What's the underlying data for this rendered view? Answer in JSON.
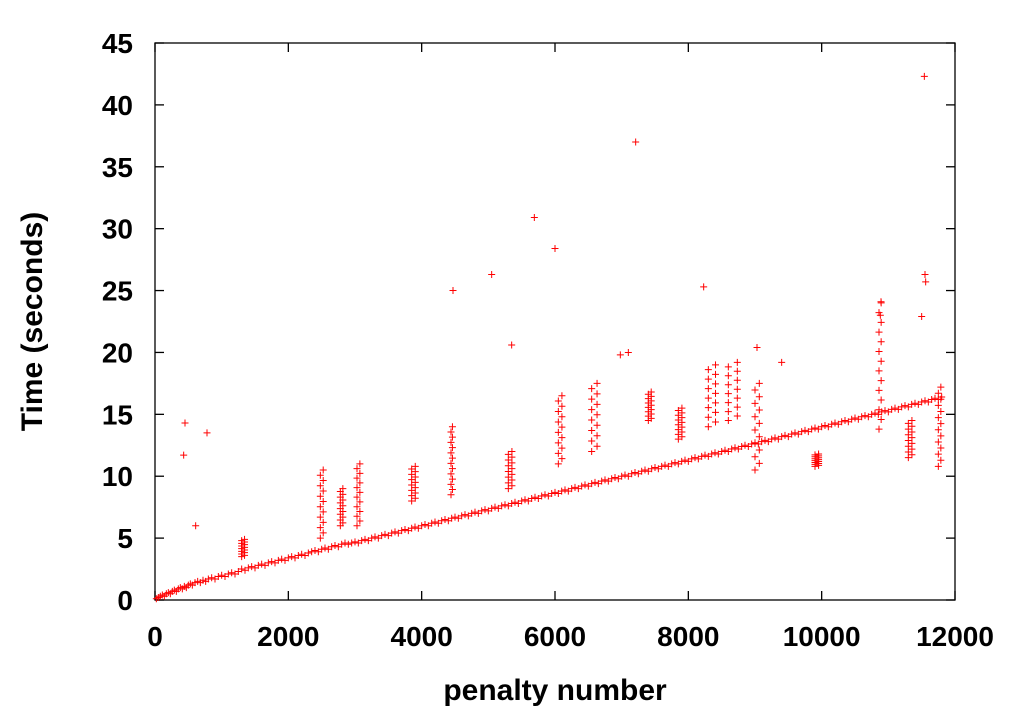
{
  "chart_data": {
    "type": "scatter",
    "xlabel": "penalty number",
    "ylabel": "Time (seconds)",
    "xlim": [
      0,
      12000
    ],
    "ylim": [
      0,
      45
    ],
    "xticks": [
      "0",
      "2000",
      "4000",
      "6000",
      "8000",
      "10000",
      "12000"
    ],
    "yticks": [
      "0",
      "5",
      "10",
      "15",
      "20",
      "25",
      "30",
      "35",
      "40",
      "45"
    ],
    "grid": false,
    "legend": "none",
    "marker": "+",
    "color": "#ff0000",
    "series": [
      {
        "points": [
          [
            20,
            0.1
          ],
          [
            50,
            0.2
          ],
          [
            80,
            0.3
          ],
          [
            110,
            0.4
          ],
          [
            140,
            0.3
          ],
          [
            170,
            0.5
          ],
          [
            200,
            0.6
          ],
          [
            230,
            0.5
          ],
          [
            260,
            0.7
          ],
          [
            290,
            0.8
          ],
          [
            320,
            0.7
          ],
          [
            350,
            0.9
          ],
          [
            380,
            1.0
          ],
          [
            410,
            0.9
          ],
          [
            440,
            1.1
          ],
          [
            470,
            1.0
          ],
          [
            500,
            1.2
          ],
          [
            530,
            1.3
          ],
          [
            560,
            1.2
          ],
          [
            600,
            1.4
          ],
          [
            640,
            1.5
          ],
          [
            680,
            1.4
          ],
          [
            720,
            1.6
          ],
          [
            760,
            1.5
          ],
          [
            800,
            1.7
          ],
          [
            850,
            1.8
          ],
          [
            900,
            1.7
          ],
          [
            950,
            1.9
          ],
          [
            1000,
            2.0
          ],
          [
            1050,
            1.9
          ],
          [
            1100,
            2.1
          ],
          [
            1150,
            2.2
          ],
          [
            1200,
            2.1
          ],
          [
            1250,
            2.3
          ],
          [
            1300,
            2.5
          ],
          [
            1350,
            2.4
          ],
          [
            1400,
            2.6
          ],
          [
            1450,
            2.7
          ],
          [
            1500,
            2.6
          ],
          [
            1550,
            2.8
          ],
          [
            1600,
            2.9
          ],
          [
            1650,
            2.8
          ],
          [
            1700,
            3.0
          ],
          [
            1750,
            3.1
          ],
          [
            1800,
            3.0
          ],
          [
            1850,
            3.2
          ],
          [
            1900,
            3.3
          ],
          [
            1950,
            3.2
          ],
          [
            2000,
            3.4
          ],
          [
            2050,
            3.5
          ],
          [
            2100,
            3.4
          ],
          [
            2150,
            3.6
          ],
          [
            2200,
            3.7
          ],
          [
            2250,
            3.6
          ],
          [
            2300,
            3.8
          ],
          [
            2350,
            3.9
          ],
          [
            2400,
            4.0
          ],
          [
            2450,
            3.9
          ],
          [
            2500,
            4.1
          ],
          [
            2550,
            4.2
          ],
          [
            2600,
            4.1
          ],
          [
            2650,
            4.3
          ],
          [
            2700,
            4.4
          ],
          [
            2750,
            4.3
          ],
          [
            2800,
            4.5
          ],
          [
            2850,
            4.6
          ],
          [
            2900,
            4.5
          ],
          [
            2950,
            4.6
          ],
          [
            3000,
            4.7
          ],
          [
            3050,
            4.6
          ],
          [
            3100,
            4.8
          ],
          [
            3150,
            4.9
          ],
          [
            3200,
            4.8
          ],
          [
            3250,
            5.0
          ],
          [
            3300,
            5.1
          ],
          [
            3350,
            5.0
          ],
          [
            3400,
            5.2
          ],
          [
            3450,
            5.3
          ],
          [
            3500,
            5.2
          ],
          [
            3550,
            5.4
          ],
          [
            3600,
            5.5
          ],
          [
            3650,
            5.4
          ],
          [
            3700,
            5.6
          ],
          [
            3750,
            5.7
          ],
          [
            3800,
            5.6
          ],
          [
            3850,
            5.8
          ],
          [
            3900,
            5.9
          ],
          [
            3950,
            5.8
          ],
          [
            4000,
            6.0
          ],
          [
            4050,
            6.1
          ],
          [
            4100,
            6.0
          ],
          [
            4150,
            6.2
          ],
          [
            4200,
            6.3
          ],
          [
            4250,
            6.2
          ],
          [
            4300,
            6.4
          ],
          [
            4350,
            6.5
          ],
          [
            4400,
            6.4
          ],
          [
            4450,
            6.6
          ],
          [
            4500,
            6.7
          ],
          [
            4550,
            6.6
          ],
          [
            4600,
            6.8
          ],
          [
            4650,
            6.9
          ],
          [
            4700,
            6.8
          ],
          [
            4750,
            7.0
          ],
          [
            4800,
            7.1
          ],
          [
            4850,
            7.0
          ],
          [
            4900,
            7.2
          ],
          [
            4950,
            7.3
          ],
          [
            5000,
            7.2
          ],
          [
            5050,
            7.4
          ],
          [
            5100,
            7.5
          ],
          [
            5150,
            7.4
          ],
          [
            5200,
            7.6
          ],
          [
            5250,
            7.7
          ],
          [
            5300,
            7.6
          ],
          [
            5350,
            7.8
          ],
          [
            5400,
            7.9
          ],
          [
            5450,
            7.8
          ],
          [
            5500,
            8.0
          ],
          [
            5550,
            8.1
          ],
          [
            5600,
            8.0
          ],
          [
            5650,
            8.2
          ],
          [
            5700,
            8.3
          ],
          [
            5750,
            8.2
          ],
          [
            5800,
            8.4
          ],
          [
            5850,
            8.5
          ],
          [
            5900,
            8.4
          ],
          [
            5950,
            8.6
          ],
          [
            6000,
            8.7
          ],
          [
            6050,
            8.6
          ],
          [
            6100,
            8.8
          ],
          [
            6150,
            8.9
          ],
          [
            6200,
            8.8
          ],
          [
            6250,
            9.0
          ],
          [
            6300,
            9.1
          ],
          [
            6350,
            9.0
          ],
          [
            6400,
            9.2
          ],
          [
            6450,
            9.3
          ],
          [
            6500,
            9.2
          ],
          [
            6550,
            9.4
          ],
          [
            6600,
            9.5
          ],
          [
            6650,
            9.4
          ],
          [
            6700,
            9.6
          ],
          [
            6750,
            9.7
          ],
          [
            6800,
            9.6
          ],
          [
            6850,
            9.8
          ],
          [
            6900,
            9.9
          ],
          [
            6950,
            9.8
          ],
          [
            7000,
            10.0
          ],
          [
            7050,
            10.1
          ],
          [
            7100,
            10.0
          ],
          [
            7150,
            10.2
          ],
          [
            7200,
            10.3
          ],
          [
            7250,
            10.2
          ],
          [
            7300,
            10.4
          ],
          [
            7350,
            10.5
          ],
          [
            7400,
            10.4
          ],
          [
            7450,
            10.6
          ],
          [
            7500,
            10.7
          ],
          [
            7550,
            10.6
          ],
          [
            7600,
            10.8
          ],
          [
            7650,
            10.9
          ],
          [
            7700,
            10.8
          ],
          [
            7750,
            11.0
          ],
          [
            7800,
            11.1
          ],
          [
            7850,
            11.0
          ],
          [
            7900,
            11.2
          ],
          [
            7950,
            11.3
          ],
          [
            8000,
            11.2
          ],
          [
            8050,
            11.4
          ],
          [
            8100,
            11.5
          ],
          [
            8150,
            11.4
          ],
          [
            8200,
            11.6
          ],
          [
            8250,
            11.7
          ],
          [
            8300,
            11.6
          ],
          [
            8350,
            11.8
          ],
          [
            8400,
            11.9
          ],
          [
            8450,
            11.8
          ],
          [
            8500,
            12.0
          ],
          [
            8550,
            12.1
          ],
          [
            8600,
            12.0
          ],
          [
            8650,
            12.2
          ],
          [
            8700,
            12.3
          ],
          [
            8750,
            12.2
          ],
          [
            8800,
            12.4
          ],
          [
            8850,
            12.5
          ],
          [
            8900,
            12.4
          ],
          [
            8950,
            12.6
          ],
          [
            9000,
            12.7
          ],
          [
            9050,
            12.6
          ],
          [
            9100,
            12.8
          ],
          [
            9150,
            12.9
          ],
          [
            9200,
            12.8
          ],
          [
            9250,
            13.0
          ],
          [
            9300,
            13.1
          ],
          [
            9350,
            13.0
          ],
          [
            9400,
            13.2
          ],
          [
            9450,
            13.3
          ],
          [
            9500,
            13.2
          ],
          [
            9550,
            13.4
          ],
          [
            9600,
            13.5
          ],
          [
            9650,
            13.4
          ],
          [
            9700,
            13.6
          ],
          [
            9750,
            13.7
          ],
          [
            9800,
            13.6
          ],
          [
            9850,
            13.8
          ],
          [
            9900,
            13.9
          ],
          [
            9950,
            13.8
          ],
          [
            10000,
            14.0
          ],
          [
            10050,
            14.1
          ],
          [
            10100,
            14.0
          ],
          [
            10150,
            14.2
          ],
          [
            10200,
            14.3
          ],
          [
            10250,
            14.2
          ],
          [
            10300,
            14.4
          ],
          [
            10350,
            14.5
          ],
          [
            10400,
            14.4
          ],
          [
            10450,
            14.6
          ],
          [
            10500,
            14.7
          ],
          [
            10550,
            14.6
          ],
          [
            10600,
            14.8
          ],
          [
            10650,
            14.9
          ],
          [
            10700,
            14.8
          ],
          [
            10750,
            15.0
          ],
          [
            10800,
            15.1
          ],
          [
            10850,
            15.0
          ],
          [
            10900,
            15.2
          ],
          [
            10950,
            15.3
          ],
          [
            11000,
            15.2
          ],
          [
            11050,
            15.4
          ],
          [
            11100,
            15.5
          ],
          [
            11150,
            15.4
          ],
          [
            11200,
            15.6
          ],
          [
            11250,
            15.7
          ],
          [
            11300,
            15.6
          ],
          [
            11350,
            15.8
          ],
          [
            11400,
            15.9
          ],
          [
            11450,
            15.8
          ],
          [
            11500,
            16.0
          ],
          [
            11550,
            16.1
          ],
          [
            11600,
            16.0
          ],
          [
            11650,
            16.2
          ],
          [
            11700,
            16.3
          ],
          [
            11750,
            16.2
          ],
          [
            11800,
            16.4
          ]
        ]
      }
    ],
    "notable_points": [
      [
        450,
        14.3
      ],
      [
        430,
        11.7
      ],
      [
        780,
        13.5
      ],
      [
        610,
        6.0
      ],
      [
        4470,
        25.0
      ],
      [
        5050,
        26.3
      ],
      [
        5350,
        20.6
      ],
      [
        5690,
        30.9
      ],
      [
        6000,
        28.4
      ],
      [
        7210,
        37.0
      ],
      [
        8230,
        25.3
      ],
      [
        6980,
        19.8
      ],
      [
        7100,
        20.0
      ],
      [
        9030,
        20.4
      ],
      [
        9400,
        19.2
      ],
      [
        11540,
        42.3
      ],
      [
        11550,
        26.3
      ],
      [
        11560,
        25.7
      ],
      [
        11500,
        22.9
      ],
      [
        10890,
        24.1
      ],
      [
        10880,
        23.0
      ]
    ],
    "clusters": [
      {
        "x_range": [
          1300,
          1380
        ],
        "y_range": [
          3.5,
          4.9
        ]
      },
      {
        "x_range": [
          2480,
          2560
        ],
        "y_range": [
          5.0,
          10.5
        ]
      },
      {
        "x_range": [
          2780,
          2850
        ],
        "y_range": [
          6.0,
          9.0
        ]
      },
      {
        "x_range": [
          3030,
          3110
        ],
        "y_range": [
          6.0,
          11.0
        ]
      },
      {
        "x_range": [
          3850,
          3950
        ],
        "y_range": [
          8.0,
          10.8
        ]
      },
      {
        "x_range": [
          4440,
          4480
        ],
        "y_range": [
          8.5,
          14.0
        ]
      },
      {
        "x_range": [
          5300,
          5400
        ],
        "y_range": [
          9.0,
          12.0
        ]
      },
      {
        "x_range": [
          6050,
          6150
        ],
        "y_range": [
          11.0,
          16.5
        ]
      },
      {
        "x_range": [
          6550,
          6700
        ],
        "y_range": [
          12.0,
          17.5
        ]
      },
      {
        "x_range": [
          7400,
          7480
        ],
        "y_range": [
          14.5,
          16.8
        ]
      },
      {
        "x_range": [
          7850,
          7950
        ],
        "y_range": [
          13.0,
          15.5
        ]
      },
      {
        "x_range": [
          8300,
          8500
        ],
        "y_range": [
          14.0,
          19.0
        ]
      },
      {
        "x_range": [
          8600,
          8850
        ],
        "y_range": [
          14.5,
          19.2
        ]
      },
      {
        "x_range": [
          9000,
          9120
        ],
        "y_range": [
          10.5,
          17.5
        ]
      },
      {
        "x_range": [
          9900,
          10000
        ],
        "y_range": [
          10.8,
          11.8
        ]
      },
      {
        "x_range": [
          10860,
          10920
        ],
        "y_range": [
          13.8,
          24.0
        ]
      },
      {
        "x_range": [
          11300,
          11400
        ],
        "y_range": [
          11.5,
          14.5
        ]
      },
      {
        "x_range": [
          11750,
          11820
        ],
        "y_range": [
          10.8,
          17.2
        ]
      }
    ]
  }
}
